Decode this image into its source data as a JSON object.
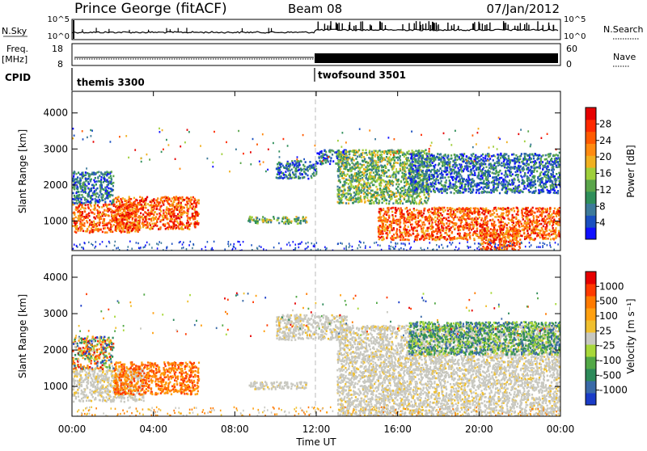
{
  "header": {
    "station": "Prince George (fitACF)",
    "beam": "Beam 08",
    "date": "07/Jan/2012"
  },
  "status_panels": {
    "nsky": {
      "label": "N.Sky",
      "ticks_left": [
        "10^5",
        "10^0"
      ],
      "ticks_right": [
        "10^5",
        "10^0"
      ],
      "right_label": "N.Search"
    },
    "freq": {
      "label_line1": "Freq.",
      "label_line2": "[MHz]",
      "ticks_left": [
        "18",
        "8"
      ],
      "ticks_right": [
        "60",
        "0"
      ],
      "right_label": "Nave"
    },
    "cpid": {
      "label": "CPID",
      "modes": [
        {
          "name": "themis 3300",
          "start_hour": 0
        },
        {
          "name": "twofsound 3501",
          "start_hour": 12
        }
      ]
    }
  },
  "chart_data": [
    {
      "type": "heatmap",
      "name": "Power",
      "ylabel": "Slant Range [km]",
      "xlabel": "",
      "ylim": [
        180,
        4600
      ],
      "yticks": [
        1000,
        2000,
        3000,
        4000
      ],
      "xlim": [
        0,
        24
      ],
      "colorbar": {
        "label": "Power [dB]",
        "ticks": [
          "28",
          "24",
          "20",
          "16",
          "12",
          "8",
          "4"
        ],
        "colors": [
          "#1010ff",
          "#1a4fc0",
          "#3d7a9a",
          "#2f8f5a",
          "#5aa54a",
          "#9fcf3a",
          "#f0b020",
          "#ff8a10",
          "#ff5a00",
          "#ff2a00",
          "#e60000"
        ]
      },
      "echo_regions": [
        {
          "x": [
            0.0,
            3.3
          ],
          "y": [
            700,
            1500
          ],
          "level": "high"
        },
        {
          "x": [
            2.0,
            6.2
          ],
          "y": [
            800,
            1700
          ],
          "level": "high"
        },
        {
          "x": [
            0.0,
            2.0
          ],
          "y": [
            1500,
            2400
          ],
          "level": "low"
        },
        {
          "x": [
            8.6,
            11.5
          ],
          "y": [
            950,
            1150
          ],
          "level": "mid"
        },
        {
          "x": [
            10.0,
            12.0
          ],
          "y": [
            2200,
            2700
          ],
          "level": "low"
        },
        {
          "x": [
            12.0,
            13.5
          ],
          "y": [
            2600,
            3000
          ],
          "level": "low"
        },
        {
          "x": [
            13.0,
            17.5
          ],
          "y": [
            1500,
            3000
          ],
          "level": "mid"
        },
        {
          "x": [
            15.0,
            24.0
          ],
          "y": [
            500,
            1400
          ],
          "level": "high"
        },
        {
          "x": [
            16.5,
            24.0
          ],
          "y": [
            1800,
            2900
          ],
          "level": "low"
        },
        {
          "x": [
            20.0,
            22.0
          ],
          "y": [
            200,
            800
          ],
          "level": "high"
        }
      ]
    },
    {
      "type": "heatmap",
      "name": "Velocity",
      "ylabel": "Slant Range [km]",
      "xlabel": "Time UT",
      "ylim": [
        180,
        4600
      ],
      "yticks": [
        1000,
        2000,
        3000,
        4000
      ],
      "xlim": [
        0,
        24
      ],
      "xticks": [
        "00:00",
        "04:00",
        "08:00",
        "12:00",
        "16:00",
        "20:00",
        "00:00"
      ],
      "colorbar": {
        "label": "Velocity [m s⁻¹]",
        "ticks": [
          "1000",
          "500",
          "100",
          "25",
          "-25",
          "-100",
          "-500",
          "-1000"
        ],
        "colors": [
          "#1a3cc8",
          "#3a6aa8",
          "#2d8a5a",
          "#52a846",
          "#a8d83a",
          "#c8c8c0",
          "#f0c030",
          "#ffa010",
          "#ff7a00",
          "#ff3a00",
          "#e60000"
        ]
      },
      "echo_regions": [
        {
          "x": [
            0.0,
            3.5
          ],
          "y": [
            600,
            1500
          ],
          "level": "ground"
        },
        {
          "x": [
            2.0,
            6.2
          ],
          "y": [
            800,
            1700
          ],
          "level": "away"
        },
        {
          "x": [
            0.0,
            2.0
          ],
          "y": [
            1500,
            2400
          ],
          "level": "mixed"
        },
        {
          "x": [
            8.6,
            11.5
          ],
          "y": [
            950,
            1150
          ],
          "level": "ground"
        },
        {
          "x": [
            10.0,
            13.5
          ],
          "y": [
            2300,
            3000
          ],
          "level": "ground"
        },
        {
          "x": [
            13.0,
            24.0
          ],
          "y": [
            200,
            2700
          ],
          "level": "ground"
        },
        {
          "x": [
            16.5,
            24.0
          ],
          "y": [
            1900,
            2800
          ],
          "level": "toward"
        }
      ]
    }
  ]
}
